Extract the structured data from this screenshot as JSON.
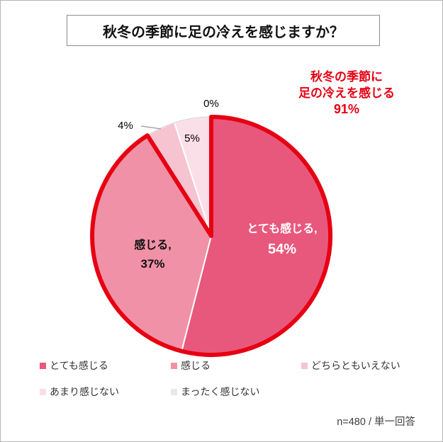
{
  "page": {
    "title": "秋冬の季節に足の冷えを感じますか？",
    "footer": "n=480 /  単一回答"
  },
  "annotation": {
    "line1": "秋冬の季節に",
    "line2": "足の冷えを感じる",
    "line3": "91%",
    "color": "#e60012"
  },
  "pie_labels": {
    "slice0_name": "とても感じる,",
    "slice0_value": "54%",
    "slice1_name": "感じる,",
    "slice1_value": "37%",
    "pct0": "0%",
    "pct4": "4%",
    "pct5": "5%"
  },
  "chart_data": {
    "type": "pie",
    "title": "秋冬の季節に足の冷えを感じますか？",
    "start_angle_deg": 0,
    "direction": "clockwise",
    "categories": [
      "とても感じる",
      "感じる",
      "どちらともいえない",
      "あまり感じない",
      "まったく感じない"
    ],
    "values": [
      54,
      37,
      4,
      5,
      0
    ],
    "unit": "%",
    "colors": [
      "#e8587c",
      "#f191a7",
      "#f6c3d1",
      "#fbdfe8",
      "#ffffff"
    ],
    "emphasis": {
      "label": "秋冬の季節に足の冷えを感じる",
      "percent": 91,
      "covers": [
        "とても感じる",
        "感じる"
      ],
      "color": "#e60012"
    },
    "callout_slice_index": 2,
    "n": 480,
    "note": "単一回答",
    "legend_position": "bottom"
  },
  "legend": {
    "items": [
      {
        "label": "とても感じる",
        "color": "#e8587c"
      },
      {
        "label": "感じる",
        "color": "#f191a7"
      },
      {
        "label": "どちらともいえない",
        "color": "#f6c3d1"
      },
      {
        "label": "あまり感じない",
        "color": "#fbdfe8"
      },
      {
        "label": "まったく感じない",
        "color": "#e9e9e9"
      }
    ]
  }
}
